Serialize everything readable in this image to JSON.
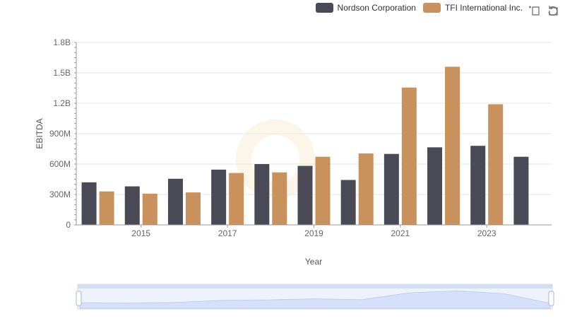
{
  "legend": [
    {
      "name": "Nordson Corporation",
      "color": "#4a4a56"
    },
    {
      "name": "TFI International Inc.",
      "color": "#c9915c"
    }
  ],
  "toolbox": {
    "zoom_icon": "zoom-select-icon",
    "restore_icon": "restore-icon"
  },
  "chart_data": {
    "type": "bar",
    "ylabel": "EBITDA",
    "xlabel": "Year",
    "ylim": [
      0,
      1800000000
    ],
    "yticks": [
      "0",
      "300M",
      "600M",
      "900M",
      "1.2B",
      "1.5B",
      "1.8B"
    ],
    "xticks": [
      "2015",
      "2017",
      "2019",
      "2021",
      "2023"
    ],
    "categories": [
      "2014",
      "2015",
      "2016",
      "2017",
      "2018",
      "2019",
      "2020",
      "2021",
      "2022",
      "2023",
      "2024"
    ],
    "series": [
      {
        "name": "Nordson Corporation",
        "color": "#4a4a56",
        "values": [
          420000000,
          380000000,
          455000000,
          545000000,
          600000000,
          582000000,
          443000000,
          700000000,
          765000000,
          780000000,
          672000000
        ]
      },
      {
        "name": "TFI International Inc.",
        "color": "#c9915c",
        "values": [
          330000000,
          308000000,
          320000000,
          512000000,
          518000000,
          672000000,
          705000000,
          1355000000,
          1560000000,
          1190000000,
          null
        ]
      }
    ],
    "grid": true,
    "legend_position": "top-right"
  }
}
